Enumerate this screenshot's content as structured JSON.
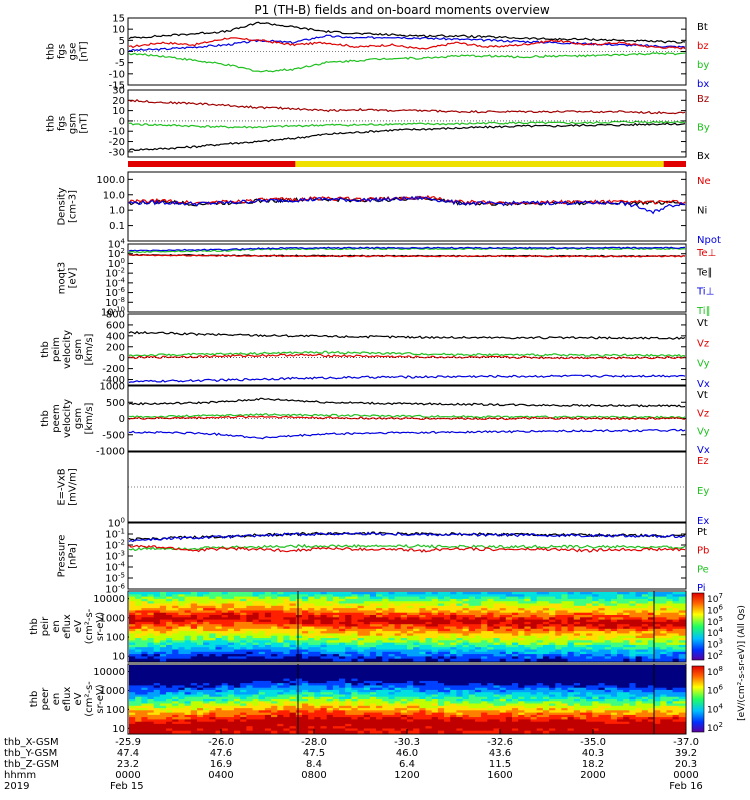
{
  "title": "P1 (TH-B) fields and on-board moments overview",
  "chart_data": [
    {
      "type": "line",
      "ylabel": [
        "thb",
        "fgs",
        "gse",
        "[nT]"
      ],
      "ylim": [
        -15,
        15
      ],
      "yticks": [
        "15",
        "10",
        "5",
        "0",
        "-5",
        "-10",
        "-15"
      ],
      "tick_values": [
        15,
        10,
        5,
        0,
        -5,
        -10,
        -15
      ],
      "legend": [
        {
          "label": "Bt",
          "color": "#000000"
        },
        {
          "label": "bz",
          "color": "#e00000"
        },
        {
          "label": "by",
          "color": "#20c020"
        },
        {
          "label": "bx",
          "color": "#0000e0"
        }
      ],
      "series": [
        {
          "name": "bx",
          "color": "#0000e0",
          "y": [
            0.5,
            1,
            2,
            3,
            5,
            4,
            7,
            6,
            6.5,
            6,
            5.5,
            5,
            4.5,
            4,
            3.5,
            3,
            2.5,
            2
          ]
        },
        {
          "name": "by",
          "color": "#20c020",
          "y": [
            -1,
            -2,
            -4,
            -6,
            -9,
            -8,
            -5,
            -4,
            -3,
            -3,
            -2,
            -2,
            -2.5,
            -2,
            -2,
            -1.5,
            -1,
            -1
          ]
        },
        {
          "name": "bz",
          "color": "#e00000",
          "y": [
            2,
            4,
            3,
            6,
            5,
            3,
            4,
            2,
            3,
            1,
            4,
            2,
            3,
            5,
            3,
            4,
            2,
            1.5
          ]
        },
        {
          "name": "Bt",
          "color": "#000000",
          "y": [
            6,
            7,
            8,
            9,
            13,
            11,
            9,
            8,
            7.5,
            7,
            7,
            6.5,
            6,
            5.5,
            5.5,
            5,
            4.5,
            4
          ]
        }
      ]
    },
    {
      "type": "line",
      "ylabel": [
        "thb",
        "fgs",
        "gsm",
        "[nT]"
      ],
      "ylim": [
        -35,
        30
      ],
      "yticks": [
        "30",
        "20",
        "10",
        "0",
        "-10",
        "-20",
        "-30"
      ],
      "tick_values": [
        30,
        20,
        10,
        0,
        -10,
        -20,
        -30
      ],
      "legend": [
        {
          "label": "Bz",
          "color": "#a00000"
        },
        {
          "label": "By",
          "color": "#20c020"
        },
        {
          "label": "Bx",
          "color": "#000000"
        }
      ],
      "series": [
        {
          "name": "Bz",
          "color": "#a00000",
          "y": [
            20,
            18,
            17,
            15,
            13,
            12,
            10,
            11,
            10,
            10,
            9,
            9,
            9,
            9,
            9,
            9,
            8,
            8
          ]
        },
        {
          "name": "By",
          "color": "#20c020",
          "y": [
            -3,
            -4,
            -5,
            -6,
            -6,
            -5,
            -4,
            -4,
            -3,
            -3,
            -3,
            -2,
            -2,
            -2,
            -2,
            -1,
            -1,
            -1
          ]
        },
        {
          "name": "Bx",
          "color": "#000000",
          "y": [
            -28,
            -27,
            -25,
            -22,
            -20,
            -17,
            -13,
            -11,
            -9,
            -8,
            -7,
            -6,
            -5,
            -5,
            -4,
            -4,
            -3,
            -3
          ]
        }
      ]
    },
    {
      "type": "line",
      "ylog": true,
      "ylabel": [
        "Density",
        "[cm-3]"
      ],
      "ylim": [
        0.01,
        300
      ],
      "yticks": [
        "100.0",
        "10.0",
        "1.0",
        "0.1"
      ],
      "tick_values": [
        100,
        10,
        1,
        0.1
      ],
      "legend": [
        {
          "label": "Ne",
          "color": "#e00000"
        },
        {
          "label": "Ni",
          "color": "#000000"
        },
        {
          "label": "Npot",
          "color": "#0000e0"
        }
      ],
      "series": [
        {
          "name": "Ni",
          "color": "#000000",
          "y": [
            3,
            3.5,
            2.5,
            3,
            4,
            4.5,
            5,
            4.5,
            5,
            6,
            3,
            2.5,
            2.8,
            3,
            3,
            3,
            3,
            3
          ]
        },
        {
          "name": "Ne",
          "color": "#e00000",
          "y": [
            3.5,
            4,
            3,
            3.5,
            4.5,
            5,
            6,
            5,
            5.5,
            7,
            3.5,
            3,
            3.2,
            3.4,
            3.4,
            3.4,
            3.3,
            3.3
          ]
        },
        {
          "name": "Npot",
          "color": "#0000e0",
          "y": [
            3,
            3.2,
            2.6,
            3,
            4,
            4.5,
            5.2,
            4.6,
            5,
            6.2,
            3,
            2.6,
            2.9,
            3,
            3,
            3,
            0.6,
            3
          ]
        }
      ]
    },
    {
      "type": "line",
      "ylog": true,
      "ylabel": [
        "moqt3",
        "[eV]"
      ],
      "ylim": [
        1e-10,
        10000
      ],
      "yticks": [
        "10<sup>4</sup>",
        "10<sup>2</sup>",
        "10<sup>0</sup>",
        "10<sup>-2</sup>",
        "10<sup>-4</sup>",
        "10<sup>-6</sup>",
        "10<sup>-8</sup>",
        "10<sup>-10</sup>"
      ],
      "tick_values": [
        10000,
        100,
        1,
        0.01,
        0.0001,
        1e-06,
        1e-08,
        1e-10
      ],
      "legend": [
        {
          "label": "Te⊥",
          "color": "#e00000"
        },
        {
          "label": "Te∥",
          "color": "#000000"
        },
        {
          "label": "Ti⊥",
          "color": "#0000e0"
        },
        {
          "label": "Ti∥",
          "color": "#20c020"
        }
      ],
      "series": [
        {
          "name": "Ti∥",
          "color": "#20c020",
          "y": [
            200,
            300,
            350,
            400,
            800,
            900,
            1000,
            1000,
            1000,
            1000,
            1000,
            1000,
            1000,
            1000,
            1000,
            1000,
            1000,
            1000
          ]
        },
        {
          "name": "Ti⊥",
          "color": "#0000e0",
          "y": [
            400,
            500,
            600,
            700,
            1200,
            1500,
            1600,
            1600,
            1600,
            1600,
            1600,
            1600,
            1600,
            1600,
            1600,
            1600,
            1600,
            1600
          ]
        },
        {
          "name": "Te∥",
          "color": "#000000",
          "y": [
            60,
            55,
            50,
            45,
            40,
            40,
            38,
            36,
            35,
            35,
            35,
            34,
            34,
            34,
            34,
            33,
            33,
            33
          ]
        },
        {
          "name": "Te⊥",
          "color": "#e00000",
          "y": [
            50,
            45,
            42,
            40,
            35,
            34,
            33,
            32,
            31,
            31,
            31,
            30,
            30,
            30,
            30,
            29,
            29,
            29
          ]
        }
      ]
    },
    {
      "type": "line",
      "ylabel": [
        "thb",
        "peim",
        "velocity",
        "gsm",
        "[km/s]"
      ],
      "ylim": [
        -500,
        800
      ],
      "yticks": [
        "800",
        "600",
        "400",
        "200",
        "0",
        "-200",
        "-400"
      ],
      "tick_values": [
        800,
        600,
        400,
        200,
        0,
        -200,
        -400
      ],
      "legend": [
        {
          "label": "Vt",
          "color": "#000000"
        },
        {
          "label": "Vz",
          "color": "#e00000"
        },
        {
          "label": "Vy",
          "color": "#20c020"
        },
        {
          "label": "Vx",
          "color": "#0000e0"
        }
      ],
      "series": [
        {
          "name": "Vt",
          "color": "#000000",
          "y": [
            460,
            450,
            430,
            420,
            410,
            400,
            390,
            385,
            380,
            375,
            370,
            368,
            366,
            364,
            362,
            360,
            358,
            356
          ]
        },
        {
          "name": "Vy",
          "color": "#20c020",
          "y": [
            40,
            50,
            60,
            70,
            80,
            90,
            100,
            90,
            80,
            70,
            60,
            55,
            50,
            50,
            45,
            45,
            40,
            40
          ]
        },
        {
          "name": "Vz",
          "color": "#e00000",
          "y": [
            0,
            10,
            20,
            30,
            40,
            50,
            40,
            30,
            20,
            10,
            10,
            5,
            5,
            0,
            0,
            0,
            0,
            0
          ]
        },
        {
          "name": "Vx",
          "color": "#0000e0",
          "y": [
            -440,
            -430,
            -420,
            -410,
            -390,
            -380,
            -370,
            -360,
            -355,
            -350,
            -345,
            -342,
            -340,
            -338,
            -336,
            -334,
            -332,
            -330
          ]
        }
      ]
    },
    {
      "type": "line",
      "ylabel": [
        "thb",
        "peem",
        "velocity",
        "gsm",
        "[km/s]"
      ],
      "ylim": [
        -1000,
        1000
      ],
      "yticks": [
        "1000",
        "500",
        "0",
        "-500",
        "-1000"
      ],
      "tick_values": [
        1000,
        500,
        0,
        -500,
        -1000
      ],
      "legend": [
        {
          "label": "Vt",
          "color": "#000000"
        },
        {
          "label": "Vz",
          "color": "#e00000"
        },
        {
          "label": "Vy",
          "color": "#20c020"
        },
        {
          "label": "Vx",
          "color": "#0000e0"
        }
      ],
      "series": [
        {
          "name": "Vt",
          "color": "#000000",
          "y": [
            450,
            460,
            480,
            520,
            600,
            560,
            500,
            480,
            460,
            450,
            440,
            430,
            420,
            410,
            400,
            395,
            390,
            385
          ]
        },
        {
          "name": "Vy",
          "color": "#20c020",
          "y": [
            50,
            60,
            80,
            100,
            120,
            110,
            100,
            90,
            80,
            70,
            60,
            55,
            50,
            45,
            40,
            40,
            40,
            40
          ]
        },
        {
          "name": "Vz",
          "color": "#e00000",
          "y": [
            0,
            10,
            20,
            40,
            60,
            40,
            20,
            10,
            0,
            0,
            0,
            0,
            0,
            0,
            0,
            0,
            0,
            0
          ]
        },
        {
          "name": "Vx",
          "color": "#0000e0",
          "y": [
            -420,
            -430,
            -450,
            -500,
            -600,
            -540,
            -480,
            -460,
            -440,
            -430,
            -420,
            -410,
            -400,
            -390,
            -380,
            -375,
            -370,
            -365
          ]
        }
      ]
    },
    {
      "type": "line",
      "ylabel": [
        "E=-VxB",
        "[mV/m]"
      ],
      "ylim": [
        -1,
        1
      ],
      "yticks": [],
      "tick_values": [],
      "legend": [
        {
          "label": "Ez",
          "color": "#e00000"
        },
        {
          "label": "Ey",
          "color": "#20c020"
        },
        {
          "label": "Ex",
          "color": "#0000e0"
        }
      ],
      "series": []
    },
    {
      "type": "line",
      "ylog": true,
      "ylabel": [
        "Pressure",
        "[nPa]"
      ],
      "ylim": [
        1e-06,
        1
      ],
      "yticks": [
        "10<sup>0</sup>",
        "10<sup>-1</sup>",
        "10<sup>-2</sup>",
        "10<sup>-3</sup>",
        "10<sup>-4</sup>",
        "10<sup>-5</sup>",
        "10<sup>-6</sup>"
      ],
      "tick_values": [
        1,
        0.1,
        0.01,
        0.001,
        0.0001,
        1e-05,
        1e-06
      ],
      "legend": [
        {
          "label": "Pt",
          "color": "#000000"
        },
        {
          "label": "Pb",
          "color": "#e00000"
        },
        {
          "label": "Pe",
          "color": "#20c020"
        },
        {
          "label": "Pi",
          "color": "#0000e0"
        }
      ],
      "series": [
        {
          "name": "Pt",
          "color": "#000000",
          "y": [
            0.03,
            0.04,
            0.05,
            0.06,
            0.08,
            0.1,
            0.11,
            0.12,
            0.11,
            0.1,
            0.1,
            0.09,
            0.09,
            0.08,
            0.08,
            0.08,
            0.07,
            0.07
          ]
        },
        {
          "name": "Pi",
          "color": "#0000e0",
          "y": [
            0.025,
            0.035,
            0.045,
            0.055,
            0.07,
            0.09,
            0.1,
            0.11,
            0.1,
            0.09,
            0.09,
            0.08,
            0.08,
            0.075,
            0.075,
            0.07,
            0.065,
            0.065
          ]
        },
        {
          "name": "Pe",
          "color": "#20c020",
          "y": [
            0.004,
            0.005,
            0.005,
            0.006,
            0.007,
            0.008,
            0.008,
            0.008,
            0.008,
            0.008,
            0.007,
            0.007,
            0.007,
            0.007,
            0.007,
            0.007,
            0.006,
            0.006
          ]
        },
        {
          "name": "Pb",
          "color": "#e00000",
          "y": [
            0.008,
            0.006,
            0.003,
            0.005,
            0.004,
            0.003,
            0.005,
            0.004,
            0.004,
            0.003,
            0.005,
            0.004,
            0.004,
            0.004,
            0.003,
            0.004,
            0.004,
            0.004
          ]
        }
      ]
    },
    {
      "type": "heatmap",
      "ylog": true,
      "ylabel": [
        "thb",
        "peir",
        "en",
        "eflux",
        "eV",
        "(cm²-s-",
        "sr-eV)"
      ],
      "ylim": [
        5,
        25000
      ],
      "yticks": [
        "10000",
        "1000",
        "100",
        "10"
      ],
      "tick_values": [
        10000,
        1000,
        100,
        10
      ],
      "colorbar": [
        "10<sup>7</sup>",
        "10<sup>6</sup>",
        "10<sup>5</sup>",
        "10<sup>4</sup>",
        "10<sup>3</sup>",
        "10<sup>2</sup>"
      ],
      "peak_energy_eV": [
        800,
        900,
        1000,
        1100,
        1000,
        900,
        800,
        700,
        700,
        650,
        650,
        600,
        600,
        600,
        600,
        550,
        550,
        550
      ]
    },
    {
      "type": "heatmap",
      "ylog": true,
      "ylabel": [
        "thb",
        "peer",
        "en",
        "eflux",
        "eV",
        "(cm²-s-",
        "sr-eV)"
      ],
      "ylim": [
        5,
        25000
      ],
      "yticks": [
        "10000",
        "1000",
        "100",
        "10"
      ],
      "tick_values": [
        10000,
        1000,
        100,
        10
      ],
      "colorbar": [
        "10<sup>8</sup>",
        "10<sup>6</sup>",
        "10<sup>4</sup>",
        "10<sup>2</sup>"
      ],
      "peak_energy_eV": [
        15,
        15,
        18,
        20,
        25,
        30,
        30,
        28,
        25,
        22,
        20,
        20,
        18,
        18,
        18,
        16,
        16,
        16
      ]
    }
  ],
  "colorbar_label": "[eV/(cm²-s-sr-eV)] (All Qs)",
  "spectrogram_label": "eflux",
  "flag_bar": [
    {
      "from": 0.0,
      "to": 0.3,
      "color": "#e00000"
    },
    {
      "from": 0.3,
      "to": 0.96,
      "color": "#f0e000"
    },
    {
      "from": 0.96,
      "to": 1.0,
      "color": "#e00000"
    }
  ],
  "xaxis": {
    "rows": [
      {
        "label": "thb_X-GSM",
        "values": [
          "-25.9",
          "-26.0",
          "-28.0",
          "-30.3",
          "-32.6",
          "-35.0",
          "-37.0"
        ]
      },
      {
        "label": "thb_Y-GSM",
        "values": [
          "47.4",
          "47.6",
          "47.5",
          "46.0",
          "43.6",
          "40.3",
          "39.2"
        ]
      },
      {
        "label": "thb_Z-GSM",
        "values": [
          "23.2",
          "16.9",
          "8.4",
          "6.4",
          "11.5",
          "18.2",
          "20.3"
        ]
      },
      {
        "label": "hhmm",
        "values": [
          "0000",
          "0400",
          "0800",
          "1200",
          "1600",
          "2000",
          "0000"
        ]
      },
      {
        "label": "2019",
        "values": [
          "Feb 15",
          "",
          "",
          "",
          "",
          "",
          "Feb 16"
        ]
      }
    ]
  }
}
